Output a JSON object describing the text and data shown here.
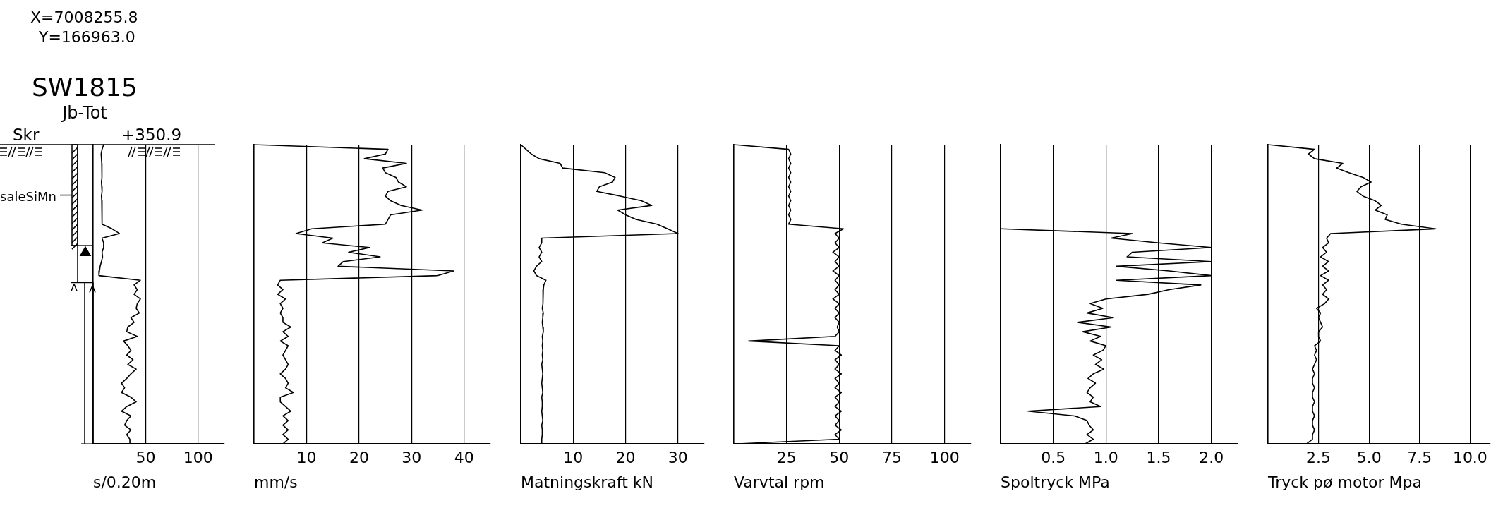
{
  "chart_data": [
    {
      "type": "line",
      "orientation": "horizontal",
      "title": "SW1815",
      "subtitle": "Jb-Tot",
      "xlabel": "s/0.20m",
      "annotations": [
        "X=7008255.8",
        "Y=166963.0",
        "Skr",
        "+350.9",
        "saleSiMn"
      ],
      "categories": [
        null,
        null,
        null,
        null,
        null,
        null,
        null,
        null,
        null,
        null,
        null,
        null,
        null,
        null,
        null,
        null,
        null,
        null,
        null,
        null,
        null,
        null,
        null,
        null,
        null,
        null,
        null,
        null,
        null,
        null,
        null,
        null,
        null,
        null,
        null,
        null,
        null,
        null,
        null,
        null,
        null,
        null,
        null,
        null,
        null,
        null,
        null,
        null,
        null,
        null,
        null,
        null,
        null,
        null,
        null,
        null,
        null,
        null,
        null,
        null,
        null,
        null,
        null,
        null,
        null
      ],
      "values": [
        10,
        8.5,
        7.6,
        7.9,
        8.2,
        8.2,
        8.5,
        8.5,
        7.9,
        8.2,
        8.5,
        7.9,
        8.2,
        8.5,
        8.5,
        8.5,
        8.5,
        8.5,
        18,
        25,
        8.5,
        10,
        10,
        8.5,
        9,
        7.9,
        6.7,
        6,
        5.5,
        45,
        39,
        42,
        39,
        45,
        42,
        41,
        44,
        36,
        39,
        33,
        32,
        42,
        29,
        33,
        36,
        32,
        38,
        33,
        41,
        36,
        32,
        27,
        30,
        27,
        36,
        41,
        32,
        27,
        36,
        32,
        30,
        36,
        32,
        35,
        35
      ],
      "color": "#000000",
      "xlim": [
        0,
        125
      ],
      "xticks": [
        50,
        100
      ],
      "grid": "x",
      "tick_labels": "x",
      "marker": "none"
    },
    {
      "type": "line",
      "orientation": "horizontal",
      "xlabel": "mm/s",
      "categories": [
        null,
        null,
        null,
        null,
        null,
        null,
        null,
        null,
        null,
        null,
        null,
        null,
        null,
        null,
        null,
        null,
        null,
        null,
        null,
        null,
        null,
        null,
        null,
        null,
        null,
        null,
        null,
        null,
        null,
        null,
        null,
        null,
        null,
        null,
        null,
        null,
        null,
        null,
        null,
        null,
        null,
        null,
        null,
        null,
        null,
        null,
        null,
        null,
        null,
        null,
        null,
        null,
        null,
        null,
        null,
        null,
        null,
        null,
        null,
        null,
        null,
        null,
        null,
        null,
        null
      ],
      "values": [
        0,
        25.5,
        25,
        21,
        29,
        24.5,
        25,
        27,
        27.5,
        29,
        25.5,
        25,
        26,
        28,
        32,
        26,
        25.5,
        25,
        11,
        8,
        15,
        13,
        22,
        18,
        24,
        17,
        16,
        38,
        35,
        5,
        4.5,
        5.5,
        4.5,
        6,
        5,
        5.5,
        5,
        5.5,
        5.5,
        7,
        5.5,
        6.5,
        5,
        6.5,
        6,
        5.5,
        6,
        6.5,
        6,
        5,
        6,
        6.5,
        6,
        7.5,
        5,
        5,
        6,
        7,
        5.5,
        6.5,
        5.5,
        6.5,
        5.5,
        6.5,
        5.5
      ],
      "color": "#000000",
      "xlim": [
        0,
        45
      ],
      "xticks": [
        10,
        20,
        30,
        40
      ],
      "grid": "x",
      "tick_labels": "x",
      "marker": "none"
    },
    {
      "type": "line",
      "orientation": "horizontal",
      "xlabel": "Matningskraft kN",
      "categories": [
        null,
        null,
        null,
        null,
        null,
        null,
        null,
        null,
        null,
        null,
        null,
        null,
        null,
        null,
        null,
        null,
        null,
        null,
        null,
        null,
        null,
        null,
        null,
        null,
        null,
        null,
        null,
        null,
        null,
        null,
        null,
        null,
        null,
        null,
        null,
        null,
        null,
        null,
        null,
        null,
        null,
        null,
        null,
        null,
        null,
        null,
        null,
        null,
        null,
        null,
        null,
        null,
        null,
        null,
        null,
        null,
        null,
        null,
        null,
        null,
        null,
        null,
        null,
        null,
        null
      ],
      "values": [
        0,
        1,
        2,
        3.5,
        7.5,
        8,
        16,
        18,
        17.5,
        15,
        14.5,
        19,
        23,
        25,
        18.5,
        20,
        22,
        26,
        28,
        30,
        4,
        4,
        3.5,
        4,
        3.5,
        4,
        3,
        2.5,
        3,
        4.8,
        4.4,
        4.3,
        4.2,
        4.3,
        4.2,
        4.1,
        4.3,
        4.2,
        4.1,
        4.2,
        4.3,
        4.1,
        4.2,
        4.1,
        4.2,
        4.1,
        4.2,
        4,
        4.1,
        4.2,
        4.1,
        4,
        4.1,
        4.2,
        4,
        4.1,
        4.1,
        4,
        4.1,
        4.2,
        4,
        4.1,
        4.1,
        4,
        4
      ],
      "color": "#000000",
      "xlim": [
        0,
        35
      ],
      "xticks": [
        10,
        20,
        30
      ],
      "grid": "x",
      "tick_labels": "x",
      "marker": "none"
    },
    {
      "type": "line",
      "orientation": "horizontal",
      "xlabel": "Varvtal rpm",
      "categories": [
        null,
        null,
        null,
        null,
        null,
        null,
        null,
        null,
        null,
        null,
        null,
        null,
        null,
        null,
        null,
        null,
        null,
        null,
        null,
        null,
        null,
        null,
        null,
        null,
        null,
        null,
        null,
        null,
        null,
        null,
        null,
        null,
        null,
        null,
        null,
        null,
        null,
        null,
        null,
        null,
        null,
        null,
        null,
        null,
        null,
        null,
        null,
        null,
        null,
        null,
        null,
        null,
        null,
        null,
        null,
        null,
        null,
        null,
        null,
        null,
        null,
        null,
        null,
        null,
        null
      ],
      "values": [
        0,
        26,
        27,
        26,
        27,
        26,
        27,
        26,
        27,
        26,
        27,
        26,
        27,
        26,
        27,
        26,
        27,
        26,
        52,
        48,
        50,
        48,
        50,
        47,
        50,
        48,
        50,
        47,
        50,
        48,
        50,
        48,
        50,
        47,
        50,
        48,
        50,
        48,
        50,
        49,
        50,
        48,
        7,
        50,
        48,
        51,
        48,
        50,
        48,
        51,
        48,
        50,
        48,
        51,
        48,
        50,
        48,
        51,
        48,
        50,
        48,
        51,
        48,
        50,
        0
      ],
      "color": "#000000",
      "xlim": [
        0,
        112.5
      ],
      "xticks": [
        25,
        50,
        75,
        100
      ],
      "grid": "x",
      "tick_labels": "x",
      "marker": "none"
    },
    {
      "type": "line",
      "orientation": "horizontal",
      "xlabel": "Spoltryck MPa",
      "categories": [
        null,
        null,
        null,
        null,
        null,
        null,
        null,
        null,
        null,
        null,
        null,
        null,
        null,
        null,
        null,
        null,
        null,
        null,
        null,
        null,
        null,
        null,
        null,
        null,
        null,
        null,
        null,
        null,
        null,
        null,
        null,
        null,
        null,
        null,
        null,
        null,
        null,
        null,
        null,
        null,
        null,
        null,
        null,
        null,
        null,
        null,
        null,
        null,
        null,
        null,
        null,
        null,
        null,
        null,
        null,
        null,
        null,
        null,
        null,
        null,
        null,
        null,
        null,
        null,
        null
      ],
      "values": [
        null,
        null,
        null,
        null,
        null,
        null,
        null,
        null,
        null,
        null,
        null,
        null,
        null,
        null,
        null,
        null,
        null,
        null,
        0,
        1.25,
        1.05,
        1.5,
        2.0,
        1.25,
        1.2,
        2.0,
        1.1,
        1.6,
        2.0,
        1.1,
        1.9,
        1.6,
        1.4,
        1.0,
        0.85,
        0.97,
        0.82,
        1.07,
        0.73,
        1.05,
        0.78,
        0.95,
        0.85,
        1.0,
        0.97,
        0.88,
        0.96,
        0.9,
        0.98,
        0.88,
        0.83,
        0.9,
        0.85,
        0.82,
        0.88,
        0.85,
        0.95,
        0.26,
        0.7,
        0.82,
        0.84,
        0.88,
        0.82,
        0.88,
        0.8
      ],
      "color": "#000000",
      "xlim": [
        0,
        2.25
      ],
      "xticks": [
        0.5,
        {
          "value": 1,
          "label": "1.0"
        },
        1.5,
        {
          "value": 2,
          "label": "2.0"
        }
      ],
      "grid": "x",
      "tick_labels": "x",
      "marker": "none"
    },
    {
      "type": "line",
      "orientation": "horizontal",
      "xlabel": "Tryck pø motor Mpa",
      "categories": [
        null,
        null,
        null,
        null,
        null,
        null,
        null,
        null,
        null,
        null,
        null,
        null,
        null,
        null,
        null,
        null,
        null,
        null,
        null,
        null,
        null,
        null,
        null,
        null,
        null,
        null,
        null,
        null,
        null,
        null,
        null,
        null,
        null,
        null,
        null,
        null,
        null,
        null,
        null,
        null,
        null,
        null,
        null,
        null,
        null,
        null,
        null,
        null,
        null,
        null,
        null,
        null,
        null,
        null,
        null,
        null,
        null,
        null,
        null,
        null,
        null,
        null,
        null,
        null,
        null
      ],
      "values": [
        0,
        2.3,
        2.0,
        2.3,
        3.7,
        3.4,
        4.0,
        4.7,
        5.1,
        4.6,
        4.4,
        4.7,
        5.3,
        5.6,
        5.3,
        5.9,
        5.8,
        6.6,
        8.3,
        3.1,
        2.9,
        3.0,
        2.7,
        2.9,
        2.6,
        3.0,
        2.7,
        3.0,
        2.6,
        3.0,
        2.7,
        2.9,
        2.7,
        3.0,
        2.8,
        2.4,
        2.6,
        2.5,
        2.6,
        2.7,
        2.5,
        2.5,
        2.6,
        2.3,
        2.4,
        2.3,
        2.4,
        2.3,
        2.2,
        2.3,
        2.2,
        2.2,
        2.3,
        2.2,
        2.2,
        2.3,
        2.2,
        2.2,
        2.3,
        2.2,
        2.2,
        2.3,
        2.2,
        2.2,
        1.9
      ],
      "color": "#000000",
      "xlim": [
        0,
        11
      ],
      "xticks": [
        2.5,
        {
          "value": 5,
          "label": "5.0"
        },
        7.5,
        {
          "value": 10,
          "label": "10.0"
        }
      ],
      "grid": "x",
      "tick_labels": "x",
      "marker": "none"
    }
  ]
}
